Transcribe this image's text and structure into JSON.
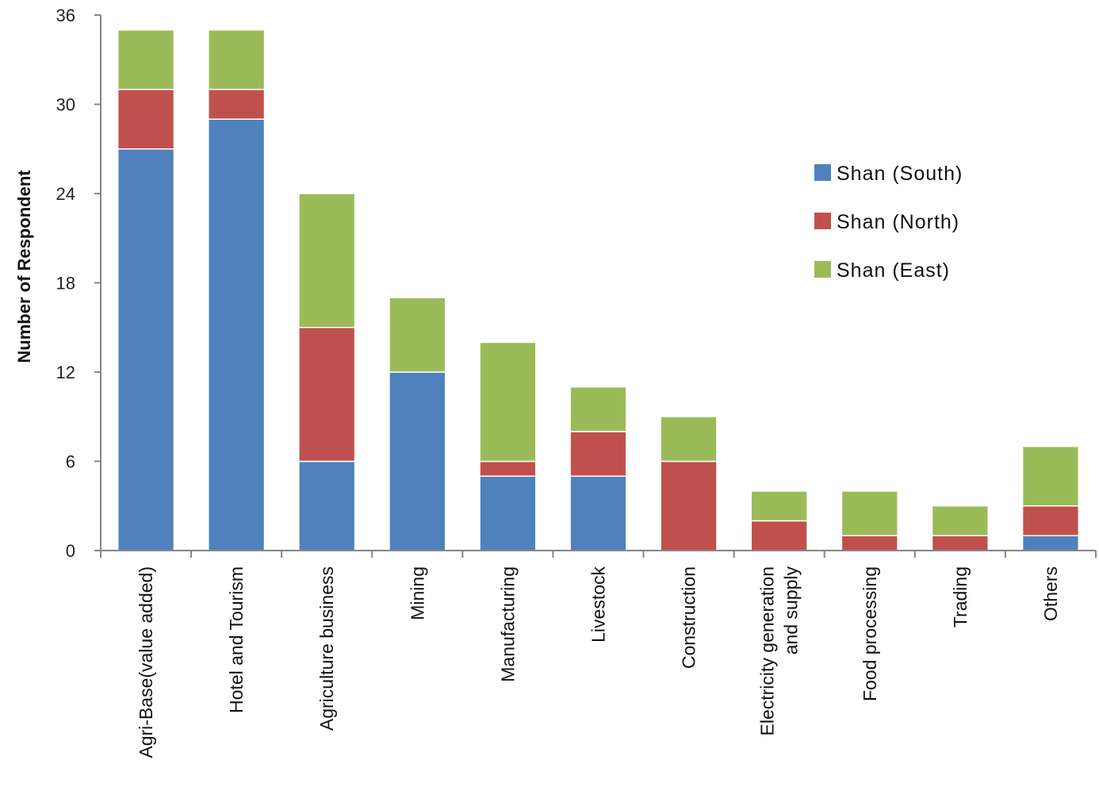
{
  "chart_data": {
    "type": "bar",
    "stacked": true,
    "ylabel": "Number of Respondent",
    "xlabel": "",
    "ylim": [
      0,
      36
    ],
    "yticks": [
      0,
      6,
      12,
      18,
      24,
      30,
      36
    ],
    "grid": false,
    "legend_position": "right",
    "categories": [
      [
        "Agri-Base(value added)"
      ],
      [
        "Hotel and Tourism"
      ],
      [
        "Agriculture business"
      ],
      [
        "Mining"
      ],
      [
        "Manufacturing"
      ],
      [
        "Livestock"
      ],
      [
        "Construction"
      ],
      [
        "Electricity generation",
        "and supply"
      ],
      [
        "Food processing"
      ],
      [
        "Trading"
      ],
      [
        "Others"
      ]
    ],
    "series": [
      {
        "name": "Shan (South)",
        "color": "#4f81bd",
        "values": [
          27,
          29,
          6,
          12,
          5,
          5,
          0,
          0,
          0,
          0,
          1
        ]
      },
      {
        "name": "Shan (North)",
        "color": "#c0504d",
        "values": [
          4,
          2,
          9,
          0,
          1,
          3,
          6,
          2,
          1,
          1,
          2
        ]
      },
      {
        "name": "Shan (East)",
        "color": "#9bbb59",
        "values": [
          4,
          4,
          9,
          5,
          8,
          3,
          3,
          2,
          3,
          2,
          4
        ]
      }
    ]
  }
}
